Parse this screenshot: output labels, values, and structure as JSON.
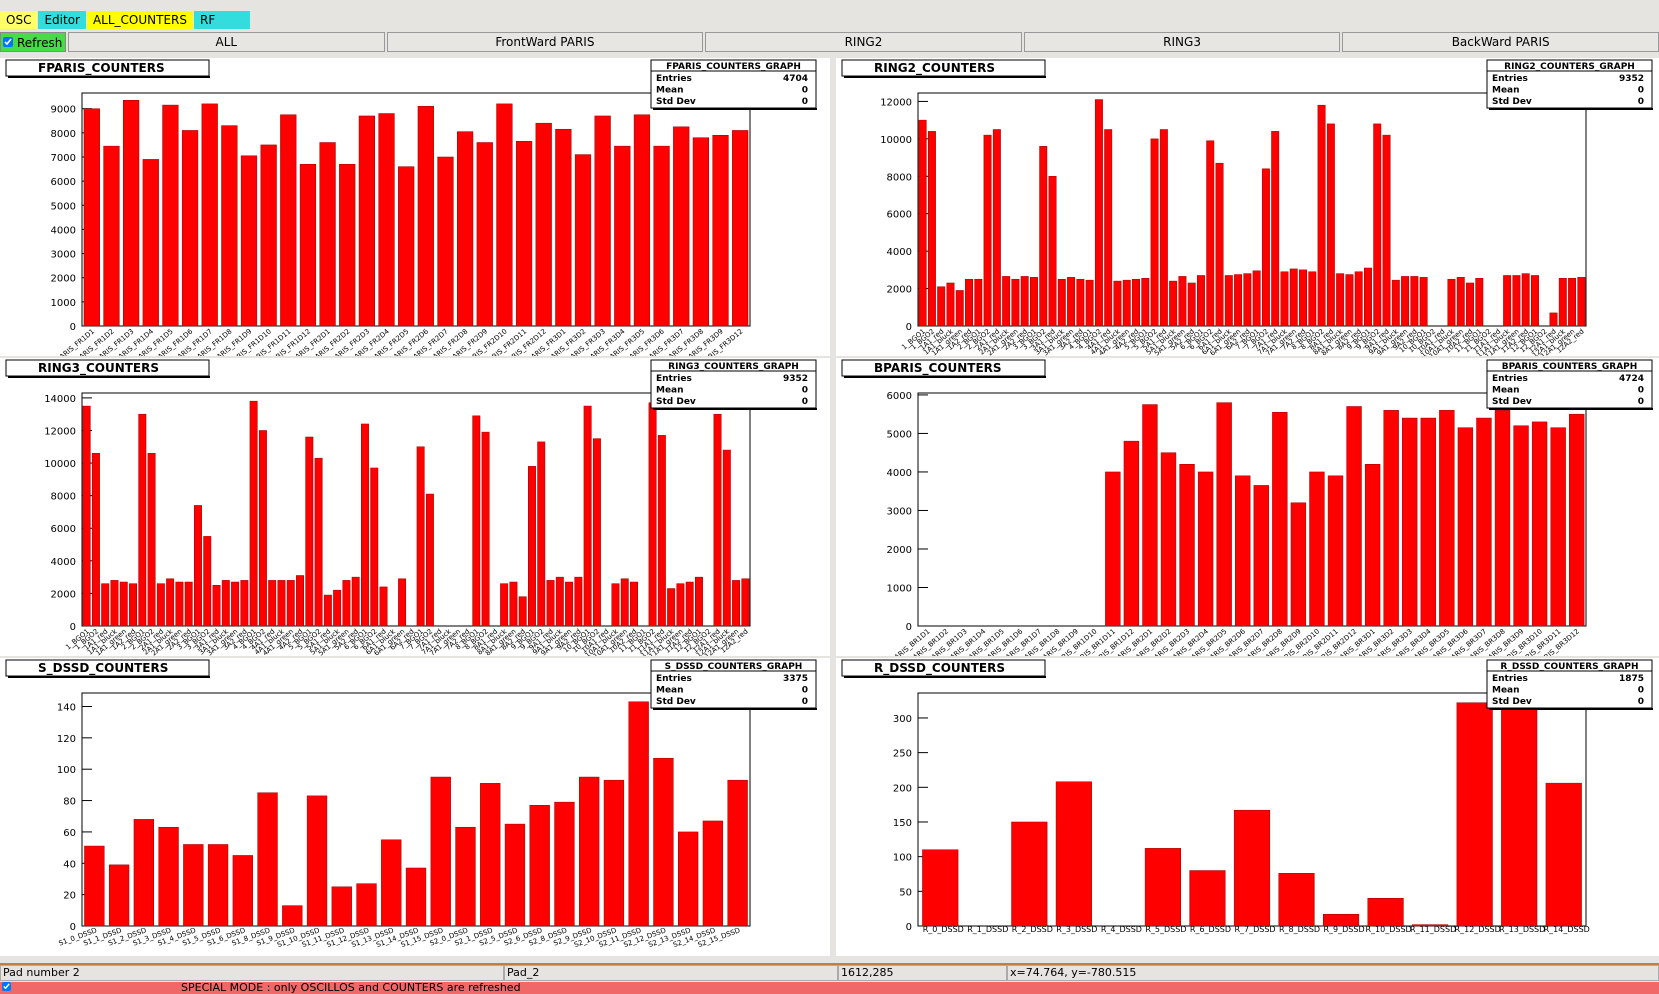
{
  "menu_tabs": [
    "OSC",
    "Editor",
    "ALL_COUNTERS",
    "RF"
  ],
  "refresh": "Refresh",
  "buttons": [
    "ALL",
    "FrontWard PARIS",
    "RING2",
    "RING3",
    "BackWard PARIS"
  ],
  "status_bar": [
    "Pad number 2",
    "Pad_2",
    "1612,285",
    "x=74.764, y=-780.515"
  ],
  "footer": "SPECIAL MODE : only OSCILLOS and COUNTERS are refreshed",
  "chart_data": [
    {
      "type": "bar",
      "title": "FPARIS_COUNTERS",
      "color": "#ff0000",
      "stats": {
        "title": "FPARIS_COUNTERS_GRAPH",
        "rows": [
          {
            "label": "Entries",
            "value": 4704
          },
          {
            "label": "Mean",
            "value": 0
          },
          {
            "label": "Std Dev",
            "value": 0
          }
        ]
      },
      "categories": [
        "PARIS_FR1D1",
        "PARIS_FR1D2",
        "PARIS_FR1D3",
        "PARIS_FR1D4",
        "PARIS_FR1D5",
        "PARIS_FR1D6",
        "PARIS_FR1D7",
        "PARIS_FR1D8",
        "PARIS_FR1D9",
        "PARIS_FR1D10",
        "PARIS_FR1D11",
        "PARIS_FR1D12",
        "PARIS_FR2D1",
        "PARIS_FR2D2",
        "PARIS_FR2D3",
        "PARIS_FR2D4",
        "PARIS_FR2D5",
        "PARIS_FR2D6",
        "PARIS_FR2D7",
        "PARIS_FR2D8",
        "PARIS_FR2D9",
        "PARIS_FR2D10",
        "PARIS_FR2D11",
        "PARIS_FR2D12",
        "PARIS_FR3D1",
        "PARIS_FR3D2",
        "PARIS_FR3D3",
        "PARIS_FR3D4",
        "PARIS_FR3D5",
        "PARIS_FR3D6",
        "PARIS_FR3D7",
        "PARIS_FR3D8",
        "PARIS_FR3D9",
        "PARIS_FR3D12"
      ],
      "values": [
        9000,
        7450,
        9350,
        6900,
        9150,
        8100,
        9200,
        8300,
        7050,
        7500,
        8750,
        6700,
        7600,
        6700,
        8700,
        8800,
        6600,
        9100,
        7000,
        8050,
        7600,
        9200,
        7650,
        8400,
        8150,
        7100,
        8700,
        7450,
        8750,
        7450,
        8250,
        7800,
        7900,
        8100
      ],
      "ylim": [
        0,
        9650
      ],
      "yticks": [
        0,
        1000,
        2000,
        3000,
        4000,
        5000,
        6000,
        7000,
        8000,
        9000
      ]
    },
    {
      "type": "bar",
      "title": "RING2_COUNTERS",
      "color": "#ff0000",
      "stats": {
        "title": "RING2_COUNTERS_GRAPH",
        "rows": [
          {
            "label": "Entries",
            "value": 9352
          },
          {
            "label": "Mean",
            "value": 0
          },
          {
            "label": "Std Dev",
            "value": 0
          }
        ]
      },
      "categories": [
        "1_BGO1",
        "1_BGO2",
        "1A1_red",
        "1A1_bluck",
        "1A1_green",
        "1A2_red",
        "2_BGO1",
        "2_BGO2",
        "2A1_red",
        "2A1_bluck",
        "2A1_green",
        "2A2_red",
        "3_BGO1",
        "3_BGO2",
        "3A1_red",
        "3A1_bluck",
        "3A1_green",
        "3A2_red",
        "4_BGO1",
        "4_BGO2",
        "4A1_red",
        "4A1_bluck",
        "4A1_green",
        "4A2_red",
        "5_BGO1",
        "5_BGO2",
        "5A1_red",
        "5A1_bluck",
        "5A1_green",
        "5A2_red",
        "6_BGO1",
        "6_BGO2",
        "6A1_red",
        "6A1_bluck",
        "6A1_green",
        "6A2_red",
        "7_BGO1",
        "7_BGO2",
        "7A1_red",
        "7A1_bluck",
        "7A1_green",
        "7A2_red",
        "8_BGO1",
        "8_BGO2",
        "8A1_red",
        "8A1_bluck",
        "8A1_green",
        "8A2_red",
        "9_BGO1",
        "9_BGO2",
        "9A1_red",
        "9A1_bluck",
        "9A1_green",
        "9A2_red",
        "10_BGO1",
        "10_BGO2",
        "10A1_red",
        "10A1_bluck",
        "10A1_green",
        "10A2_red",
        "11_BGO1",
        "11_BGO2",
        "11A1_red",
        "11A1_bluck",
        "11A1_green",
        "11A2_red",
        "12_BGO1",
        "12_BGO2",
        "12A1_red",
        "12A1_bluck",
        "12A1_green",
        "12A2_red"
      ],
      "values": [
        11000,
        10400,
        2100,
        2300,
        1900,
        2500,
        2500,
        10200,
        10500,
        2650,
        2500,
        2650,
        2600,
        9600,
        8000,
        2500,
        2600,
        2500,
        2450,
        12100,
        10500,
        2400,
        2450,
        2500,
        2550,
        10000,
        10500,
        2400,
        2650,
        2300,
        2700,
        9900,
        8700,
        2700,
        2750,
        2800,
        2950,
        8400,
        10400,
        2900,
        3050,
        3000,
        2900,
        11800,
        10800,
        2800,
        2750,
        2900,
        3100,
        10800,
        10200,
        2450,
        2650,
        2650,
        2600,
        0,
        0,
        2500,
        2600,
        2300,
        2550,
        0,
        0,
        2700,
        2700,
        2800,
        2700,
        0,
        700,
        2550,
        2550,
        2600
      ],
      "ylim": [
        0,
        12450
      ],
      "yticks": [
        0,
        2000,
        4000,
        6000,
        8000,
        10000,
        12000
      ]
    },
    {
      "type": "bar",
      "title": "RING3_COUNTERS",
      "color": "#ff0000",
      "stats": {
        "title": "RING3_COUNTERS_GRAPH",
        "rows": [
          {
            "label": "Entries",
            "value": 9352
          },
          {
            "label": "Mean",
            "value": 0
          },
          {
            "label": "Std Dev",
            "value": 0
          }
        ]
      },
      "categories": [
        "1_BGO1",
        "1_BGO2",
        "1A1_red",
        "1A1_bluck",
        "1A1_green",
        "1A2_red",
        "2_BGO1",
        "2_BGO2",
        "2A1_red",
        "2A1_bluck",
        "2A1_green",
        "2A2_red",
        "3_BGO1",
        "3_BGO2",
        "3A1_red",
        "3A1_bluck",
        "3A1_green",
        "3A2_red",
        "4_BGO1",
        "4_BGO2",
        "4A1_red",
        "4A1_bluck",
        "4A1_green",
        "4A2_red",
        "5_BGO1",
        "5_BGO2",
        "5A1_red",
        "5A1_bluck",
        "5A1_green",
        "5A2_red",
        "6_BGO1",
        "6_BGO2",
        "6A1_red",
        "6A1_bluck",
        "6A1_green",
        "6A2_red",
        "7_BGO1",
        "7_BGO2",
        "7A1_red",
        "7A1_bluck",
        "7A1_green",
        "7A2_red",
        "8_BGO1",
        "8_BGO2",
        "8A1_red",
        "8A1_bluck",
        "8A1_green",
        "8A2_red",
        "9_BGO1",
        "9_BGO2",
        "9A1_red",
        "9A1_bluck",
        "9A1_green",
        "9A2_red",
        "10_BGO1",
        "10_BGO2",
        "10A1_red",
        "10A1_bluck",
        "10A1_green",
        "10A2_red",
        "11_BGO1",
        "11_BGO2",
        "11A1_red",
        "11A1_bluck",
        "11A1_green",
        "11A2_red",
        "12_BGO1",
        "12_BGO2",
        "12A1_red",
        "12A1_bluck",
        "12A1_green",
        "12A2_red"
      ],
      "values": [
        13500,
        10600,
        2600,
        2800,
        2700,
        2600,
        13000,
        10600,
        2600,
        2900,
        2700,
        2700,
        7400,
        5500,
        2500,
        2800,
        2700,
        2800,
        13800,
        12000,
        2800,
        2800,
        2800,
        3100,
        11600,
        10300,
        1900,
        2200,
        2800,
        3000,
        12400,
        9700,
        2400,
        0,
        2900,
        0,
        11000,
        8100,
        0,
        0,
        0,
        0,
        12900,
        11900,
        0,
        2600,
        2700,
        1800,
        9800,
        11300,
        2800,
        3000,
        2700,
        3000,
        13500,
        11500,
        0,
        2600,
        2900,
        2700,
        0,
        13700,
        11700,
        2300,
        2600,
        2700,
        3000,
        0,
        13000,
        10800,
        2800,
        2900
      ],
      "ylim": [
        0,
        14300
      ],
      "yticks": [
        0,
        2000,
        4000,
        6000,
        8000,
        10000,
        12000,
        14000
      ]
    },
    {
      "type": "bar",
      "title": "BPARIS_COUNTERS",
      "color": "#ff0000",
      "stats": {
        "title": "BPARIS_COUNTERS_GRAPH",
        "rows": [
          {
            "label": "Entries",
            "value": 4724
          },
          {
            "label": "Mean",
            "value": 0
          },
          {
            "label": "Std Dev",
            "value": 0
          }
        ]
      },
      "categories": [
        "PARIS_BR1D1",
        "PARIS_BR1D2",
        "PARIS_BR1D3",
        "PARIS_BR1D4",
        "PARIS_BR1D5",
        "PARIS_BR1D6",
        "PARIS_BR1D7",
        "PARIS_BR1D8",
        "PARIS_BR1D9",
        "PARIS_BR1D10",
        "PARIS_BR1D11",
        "PARIS_BR1D12",
        "PARIS_BR2D1",
        "PARIS_BR2D2",
        "PARIS_BR2D3",
        "PARIS_BR2D4",
        "PARIS_BR2D5",
        "PARIS_BR2D6",
        "PARIS_BR2D7",
        "PARIS_BR2D8",
        "PARIS_BR2D9",
        "PARIS_BR2D10",
        "PARIS_BR2D11",
        "PARIS_BR2D12",
        "PARIS_BR3D1",
        "PARIS_BR3D2",
        "PARIS_BR3D3",
        "PARIS_BR3D4",
        "PARIS_BR3D5",
        "PARIS_BR3D6",
        "PARIS_BR3D7",
        "PARIS_BR3D8",
        "PARIS_BR3D9",
        "PARIS_BR3D10",
        "PARIS_BR3D11",
        "PARIS_BR3D12"
      ],
      "values": [
        0,
        0,
        0,
        0,
        0,
        0,
        0,
        0,
        0,
        0,
        4000,
        4800,
        5750,
        4500,
        4200,
        4000,
        5800,
        3900,
        3650,
        5550,
        3200,
        4000,
        3900,
        5700,
        4200,
        5600,
        5400,
        5400,
        5600,
        5150,
        5400,
        5600,
        5200,
        5300,
        5150,
        5500
      ],
      "ylim": [
        0,
        6050
      ],
      "yticks": [
        0,
        1000,
        2000,
        3000,
        4000,
        5000,
        6000
      ]
    },
    {
      "type": "bar",
      "title": "S_DSSD_COUNTERS",
      "color": "#ff0000",
      "stats": {
        "title": "S_DSSD_COUNTERS_GRAPH",
        "rows": [
          {
            "label": "Entries",
            "value": 3375
          },
          {
            "label": "Mean",
            "value": 0
          },
          {
            "label": "Std Dev",
            "value": 0
          }
        ]
      },
      "categories": [
        "S1_0_DSSD",
        "S1_1_DSSD",
        "S1_2_DSSD",
        "S1_3_DSSD",
        "S1_4_DSSD",
        "S1_5_DSSD",
        "S1_6_DSSD",
        "S1_8_DSSD",
        "S1_9_DSSD",
        "S1_10_DSSD",
        "S1_11_DSSD",
        "S1_12_DSSD",
        "S1_13_DSSD",
        "S1_14_DSSD",
        "S1_15_DSSD",
        "S2_0_DSSD",
        "S2_1_DSSD",
        "S2_5_DSSD",
        "S2_6_DSSD",
        "S2_8_DSSD",
        "S2_9_DSSD",
        "S2_10_DSSD",
        "S2_11_DSSD",
        "S2_12_DSSD",
        "S2_13_DSSD",
        "S2_14_DSSD",
        "S2_15_DSSD"
      ],
      "values": [
        51,
        39,
        68,
        63,
        52,
        52,
        45,
        85,
        13,
        83,
        25,
        27,
        55,
        37,
        95,
        63,
        91,
        65,
        77,
        79,
        95,
        93,
        143,
        107,
        60,
        67,
        93
      ],
      "ylim": [
        0,
        148.6
      ],
      "yticks": [
        0,
        20,
        40,
        60,
        80,
        100,
        120,
        140
      ]
    },
    {
      "type": "bar",
      "title": "R_DSSD_COUNTERS",
      "color": "#ff0000",
      "stats": {
        "title": "R_DSSD_COUNTERS_GRAPH",
        "rows": [
          {
            "label": "Entries",
            "value": 1875
          },
          {
            "label": "Mean",
            "value": 0
          },
          {
            "label": "Std Dev",
            "value": 0
          }
        ]
      },
      "categories": [
        "R_0_DSSD",
        "R_1_DSSD",
        "R_2_DSSD",
        "R_3_DSSD",
        "R_4_DSSD",
        "R_5_DSSD",
        "R_6_DSSD",
        "R_7_DSSD",
        "R_8_DSSD",
        "R_9_DSSD",
        "R_10_DSSD",
        "R_11_DSSD",
        "R_12_DSSD",
        "R_13_DSSD",
        "R_14_DSSD"
      ],
      "values": [
        110,
        0,
        150,
        208,
        0,
        112,
        80,
        167,
        76,
        17,
        40,
        2,
        322,
        322,
        206
      ],
      "ylim": [
        0,
        336
      ],
      "yticks": [
        0,
        50,
        100,
        150,
        200,
        250,
        300
      ]
    }
  ]
}
